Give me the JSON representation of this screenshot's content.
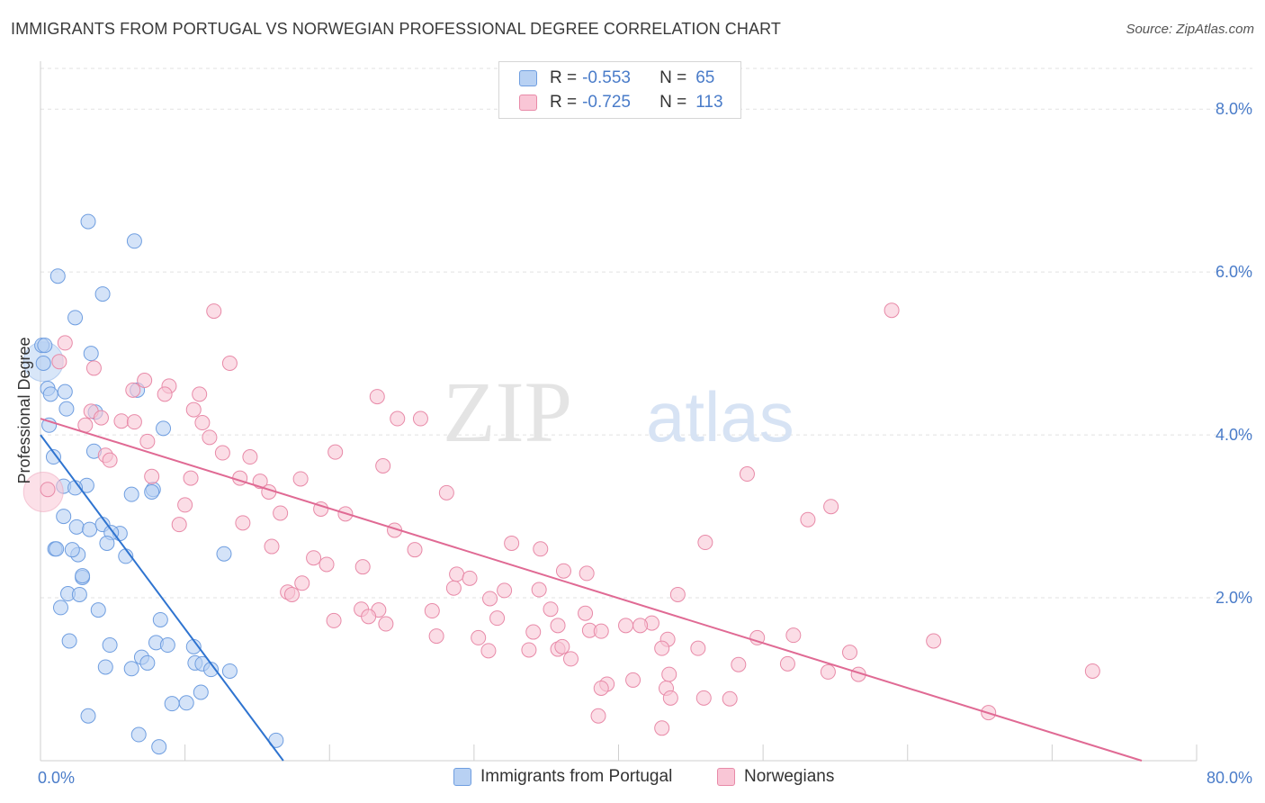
{
  "title": "IMMIGRANTS FROM PORTUGAL VS NORWEGIAN PROFESSIONAL DEGREE CORRELATION CHART",
  "source": "Source: ZipAtlas.com",
  "watermark": {
    "zip": "ZIP",
    "atlas": "atlas"
  },
  "legend_top": {
    "series": [
      {
        "r_label": "R =",
        "r_value": "-0.553",
        "n_label": "N =",
        "n_value": "65",
        "color": "#b8d1f3",
        "edge": "#6f9ee0"
      },
      {
        "r_label": "R =",
        "r_value": "-0.725",
        "n_label": "N =",
        "n_value": "113",
        "color": "#f9c6d6",
        "edge": "#e88aa8"
      }
    ]
  },
  "legend_bottom": [
    {
      "label": "Immigrants from Portugal",
      "color": "#b8d1f3",
      "edge": "#6f9ee0"
    },
    {
      "label": "Norwegians",
      "color": "#f9c6d6",
      "edge": "#e88aa8"
    }
  ],
  "chart_data": {
    "type": "scatter",
    "title": "IMMIGRANTS FROM PORTUGAL VS NORWEGIAN PROFESSIONAL DEGREE CORRELATION CHART",
    "xlabel": "",
    "ylabel": "Professional Degree",
    "xlim": [
      0,
      80
    ],
    "ylim": [
      0,
      8.5
    ],
    "x_tick_labels": [
      "0.0%",
      "80.0%"
    ],
    "y_ticks": [
      2,
      4,
      6,
      8
    ],
    "y_tick_labels": [
      "2.0%",
      "4.0%",
      "6.0%",
      "8.0%"
    ],
    "grid": true,
    "legend_placement": "top-center and bottom",
    "series": [
      {
        "name": "Immigrants from Portugal",
        "color": "#6f9ee0",
        "fill": "#b8d1f3",
        "trend": {
          "x": [
            0,
            16.8
          ],
          "y": [
            4.0,
            0
          ]
        },
        "points": [
          [
            3.3,
            6.62
          ],
          [
            6.5,
            6.38
          ],
          [
            1.2,
            5.95
          ],
          [
            4.3,
            5.73
          ],
          [
            2.4,
            5.44
          ],
          [
            0.1,
            5.1
          ],
          [
            0.3,
            5.1
          ],
          [
            3.5,
            5.0
          ],
          [
            0.2,
            4.88
          ],
          [
            0.5,
            4.57
          ],
          [
            0.7,
            4.5
          ],
          [
            1.7,
            4.53
          ],
          [
            6.7,
            4.55
          ],
          [
            1.8,
            4.32
          ],
          [
            3.8,
            4.28
          ],
          [
            0.6,
            4.12
          ],
          [
            8.5,
            4.08
          ],
          [
            3.7,
            3.8
          ],
          [
            0.9,
            3.73
          ],
          [
            1.6,
            3.37
          ],
          [
            3.2,
            3.38
          ],
          [
            2.4,
            3.35
          ],
          [
            7.8,
            3.33
          ],
          [
            7.7,
            3.3
          ],
          [
            6.3,
            3.27
          ],
          [
            1.6,
            3.0
          ],
          [
            2.5,
            2.87
          ],
          [
            3.4,
            2.84
          ],
          [
            4.3,
            2.9
          ],
          [
            5.5,
            2.79
          ],
          [
            4.9,
            2.8
          ],
          [
            1.0,
            2.6
          ],
          [
            1.1,
            2.6
          ],
          [
            4.6,
            2.67
          ],
          [
            2.6,
            2.53
          ],
          [
            2.2,
            2.59
          ],
          [
            5.9,
            2.51
          ],
          [
            12.7,
            2.54
          ],
          [
            2.9,
            2.25
          ],
          [
            2.9,
            2.27
          ],
          [
            1.9,
            2.05
          ],
          [
            2.7,
            2.04
          ],
          [
            1.4,
            1.88
          ],
          [
            4.0,
            1.85
          ],
          [
            8.3,
            1.73
          ],
          [
            2.0,
            1.47
          ],
          [
            4.8,
            1.42
          ],
          [
            8.0,
            1.45
          ],
          [
            8.8,
            1.42
          ],
          [
            7.0,
            1.27
          ],
          [
            7.4,
            1.2
          ],
          [
            10.6,
            1.4
          ],
          [
            10.7,
            1.2
          ],
          [
            11.2,
            1.19
          ],
          [
            4.5,
            1.15
          ],
          [
            6.3,
            1.13
          ],
          [
            11.8,
            1.12
          ],
          [
            13.1,
            1.1
          ],
          [
            11.1,
            0.84
          ],
          [
            10.1,
            0.71
          ],
          [
            9.1,
            0.7
          ],
          [
            3.3,
            0.55
          ],
          [
            6.8,
            0.32
          ],
          [
            8.2,
            0.17
          ],
          [
            16.3,
            0.25
          ]
        ],
        "large_points": [
          [
            0.2,
            4.9
          ]
        ]
      },
      {
        "name": "Norwegians",
        "color": "#e88aa8",
        "fill": "#f9c6d6",
        "trend": {
          "x": [
            0,
            76.2
          ],
          "y": [
            4.2,
            0
          ]
        },
        "points": [
          [
            12.0,
            5.52
          ],
          [
            58.9,
            5.53
          ],
          [
            1.7,
            5.13
          ],
          [
            13.1,
            4.88
          ],
          [
            1.3,
            4.9
          ],
          [
            3.7,
            4.82
          ],
          [
            7.2,
            4.67
          ],
          [
            8.9,
            4.6
          ],
          [
            11.0,
            4.5
          ],
          [
            6.4,
            4.55
          ],
          [
            8.6,
            4.5
          ],
          [
            23.3,
            4.47
          ],
          [
            3.5,
            4.29
          ],
          [
            10.6,
            4.31
          ],
          [
            4.2,
            4.21
          ],
          [
            5.6,
            4.17
          ],
          [
            6.5,
            4.16
          ],
          [
            11.2,
            4.15
          ],
          [
            3.1,
            4.12
          ],
          [
            24.7,
            4.2
          ],
          [
            26.3,
            4.2
          ],
          [
            7.4,
            3.92
          ],
          [
            11.7,
            3.97
          ],
          [
            12.6,
            3.78
          ],
          [
            4.5,
            3.75
          ],
          [
            4.8,
            3.69
          ],
          [
            14.5,
            3.73
          ],
          [
            20.4,
            3.79
          ],
          [
            23.7,
            3.62
          ],
          [
            7.7,
            3.49
          ],
          [
            10.4,
            3.47
          ],
          [
            13.8,
            3.47
          ],
          [
            15.2,
            3.43
          ],
          [
            18.0,
            3.46
          ],
          [
            15.8,
            3.3
          ],
          [
            28.1,
            3.29
          ],
          [
            48.9,
            3.52
          ],
          [
            10.0,
            3.14
          ],
          [
            19.4,
            3.09
          ],
          [
            16.6,
            3.04
          ],
          [
            21.1,
            3.03
          ],
          [
            54.7,
            3.12
          ],
          [
            53.1,
            2.96
          ],
          [
            14.0,
            2.92
          ],
          [
            9.6,
            2.9
          ],
          [
            24.5,
            2.83
          ],
          [
            16.0,
            2.63
          ],
          [
            25.9,
            2.59
          ],
          [
            32.6,
            2.67
          ],
          [
            46.0,
            2.68
          ],
          [
            34.6,
            2.6
          ],
          [
            18.9,
            2.49
          ],
          [
            19.8,
            2.41
          ],
          [
            22.3,
            2.38
          ],
          [
            28.8,
            2.29
          ],
          [
            29.7,
            2.24
          ],
          [
            36.2,
            2.33
          ],
          [
            37.8,
            2.3
          ],
          [
            28.6,
            2.12
          ],
          [
            18.1,
            2.18
          ],
          [
            17.1,
            2.07
          ],
          [
            17.4,
            2.04
          ],
          [
            34.5,
            2.1
          ],
          [
            32.1,
            2.09
          ],
          [
            31.1,
            1.99
          ],
          [
            44.1,
            2.04
          ],
          [
            22.2,
            1.86
          ],
          [
            23.4,
            1.85
          ],
          [
            27.1,
            1.84
          ],
          [
            35.3,
            1.86
          ],
          [
            22.7,
            1.77
          ],
          [
            31.6,
            1.75
          ],
          [
            37.7,
            1.81
          ],
          [
            20.3,
            1.72
          ],
          [
            23.9,
            1.68
          ],
          [
            35.8,
            1.66
          ],
          [
            40.5,
            1.66
          ],
          [
            42.3,
            1.69
          ],
          [
            27.4,
            1.53
          ],
          [
            30.3,
            1.51
          ],
          [
            34.1,
            1.58
          ],
          [
            38.0,
            1.6
          ],
          [
            38.8,
            1.59
          ],
          [
            41.5,
            1.66
          ],
          [
            43.4,
            1.49
          ],
          [
            49.6,
            1.51
          ],
          [
            52.1,
            1.54
          ],
          [
            61.8,
            1.47
          ],
          [
            31.0,
            1.35
          ],
          [
            33.8,
            1.36
          ],
          [
            35.8,
            1.37
          ],
          [
            36.1,
            1.4
          ],
          [
            43.0,
            1.38
          ],
          [
            45.5,
            1.38
          ],
          [
            56.0,
            1.33
          ],
          [
            36.7,
            1.25
          ],
          [
            48.3,
            1.18
          ],
          [
            51.7,
            1.19
          ],
          [
            54.5,
            1.09
          ],
          [
            56.6,
            1.06
          ],
          [
            43.5,
            1.06
          ],
          [
            41.0,
            0.99
          ],
          [
            39.2,
            0.94
          ],
          [
            38.8,
            0.89
          ],
          [
            43.3,
            0.89
          ],
          [
            45.9,
            0.77
          ],
          [
            43.6,
            0.77
          ],
          [
            47.7,
            0.76
          ],
          [
            72.8,
            1.1
          ],
          [
            38.6,
            0.55
          ],
          [
            43.0,
            0.4
          ],
          [
            65.6,
            0.59
          ],
          [
            0.5,
            3.33
          ]
        ],
        "large_points": [
          [
            0.2,
            3.3
          ]
        ]
      }
    ]
  }
}
